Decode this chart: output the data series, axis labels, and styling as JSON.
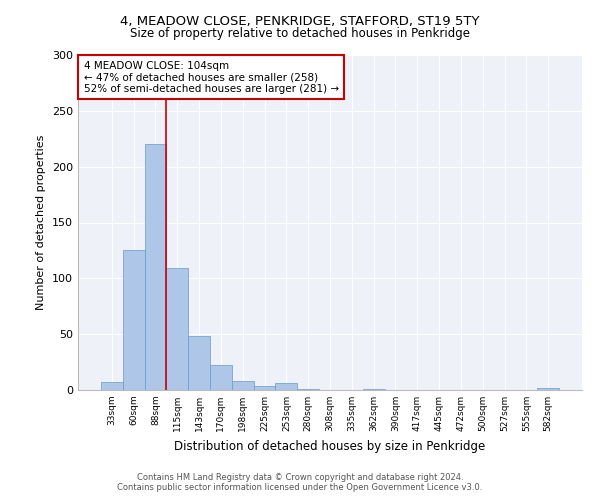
{
  "title1": "4, MEADOW CLOSE, PENKRIDGE, STAFFORD, ST19 5TY",
  "title2": "Size of property relative to detached houses in Penkridge",
  "xlabel": "Distribution of detached houses by size in Penkridge",
  "ylabel": "Number of detached properties",
  "categories": [
    "33sqm",
    "60sqm",
    "88sqm",
    "115sqm",
    "143sqm",
    "170sqm",
    "198sqm",
    "225sqm",
    "253sqm",
    "280sqm",
    "308sqm",
    "335sqm",
    "362sqm",
    "390sqm",
    "417sqm",
    "445sqm",
    "472sqm",
    "500sqm",
    "527sqm",
    "555sqm",
    "582sqm"
  ],
  "values": [
    7,
    125,
    220,
    109,
    48,
    22,
    8,
    4,
    6,
    1,
    0,
    0,
    1,
    0,
    0,
    0,
    0,
    0,
    0,
    0,
    2
  ],
  "bar_color": "#aec6e8",
  "bar_edge_color": "#6699cc",
  "background_color": "#eef2f8",
  "grid_color": "#ffffff",
  "vline_x": 2.5,
  "vline_color": "#cc0000",
  "annotation_box_text": "4 MEADOW CLOSE: 104sqm\n← 47% of detached houses are smaller (258)\n52% of semi-detached houses are larger (281) →",
  "annotation_box_color": "#cc0000",
  "ylim": [
    0,
    300
  ],
  "yticks": [
    0,
    50,
    100,
    150,
    200,
    250,
    300
  ],
  "footer1": "Contains HM Land Registry data © Crown copyright and database right 2024.",
  "footer2": "Contains public sector information licensed under the Open Government Licence v3.0."
}
